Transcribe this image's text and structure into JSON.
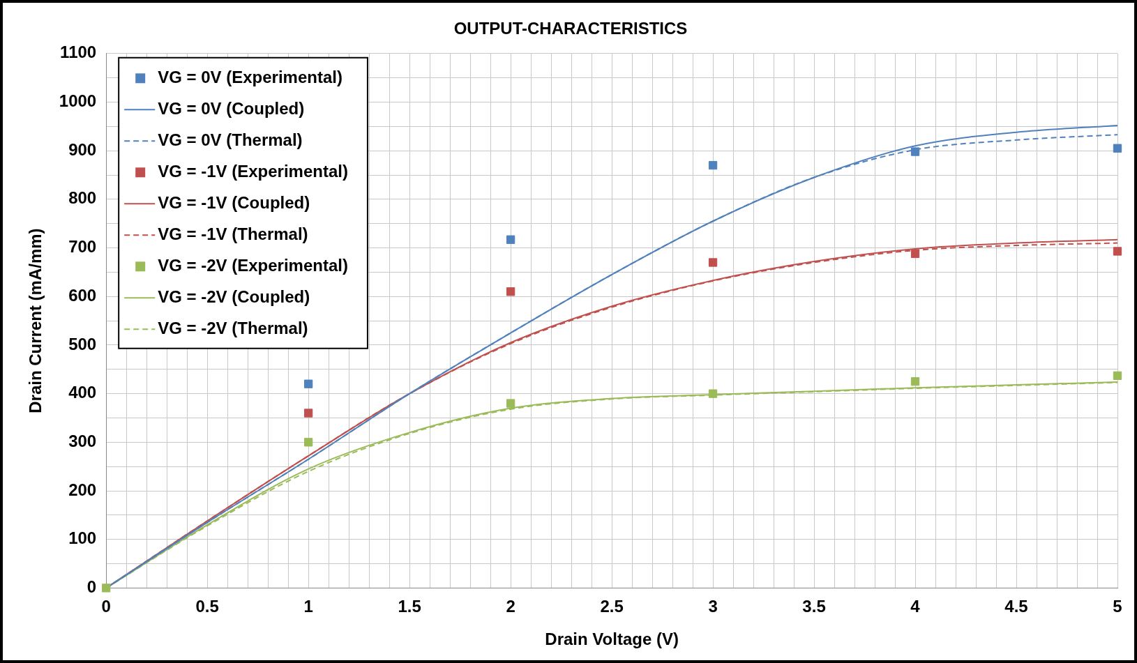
{
  "chart_data": {
    "type": "scatter",
    "title": "OUTPUT-CHARACTERISTICS",
    "xlabel": "Drain Voltage (V)",
    "ylabel": "Drain Current (mA/mm)",
    "xlim": [
      0,
      5
    ],
    "ylim": [
      0,
      1100
    ],
    "xticks": [
      0,
      {
        "value": 0.1,
        "label": null
      },
      {
        "value": 0.2,
        "label": null
      },
      {
        "value": 0.3,
        "label": null
      },
      {
        "value": 0.4,
        "label": null
      },
      0.5,
      {
        "value": 0.6,
        "label": null
      },
      {
        "value": 0.7,
        "label": null
      },
      {
        "value": 0.8,
        "label": null
      },
      {
        "value": 0.9,
        "label": null
      },
      1,
      {
        "value": 1.1,
        "label": null
      },
      {
        "value": 1.2,
        "label": null
      },
      {
        "value": 1.3,
        "label": null
      },
      {
        "value": 1.4,
        "label": null
      },
      1.5,
      {
        "value": 1.6,
        "label": null
      },
      {
        "value": 1.7,
        "label": null
      },
      {
        "value": 1.8,
        "label": null
      },
      {
        "value": 1.9,
        "label": null
      },
      2,
      {
        "value": 2.1,
        "label": null
      },
      {
        "value": 2.2,
        "label": null
      },
      {
        "value": 2.3,
        "label": null
      },
      {
        "value": 2.4,
        "label": null
      },
      2.5,
      {
        "value": 2.6,
        "label": null
      },
      {
        "value": 2.7,
        "label": null
      },
      {
        "value": 2.8,
        "label": null
      },
      {
        "value": 2.9,
        "label": null
      },
      3,
      {
        "value": 3.1,
        "label": null
      },
      {
        "value": 3.2,
        "label": null
      },
      {
        "value": 3.3,
        "label": null
      },
      {
        "value": 3.4,
        "label": null
      },
      3.5,
      {
        "value": 3.6,
        "label": null
      },
      {
        "value": 3.7,
        "label": null
      },
      {
        "value": 3.8,
        "label": null
      },
      {
        "value": 3.9,
        "label": null
      },
      4,
      {
        "value": 4.1,
        "label": null
      },
      {
        "value": 4.2,
        "label": null
      },
      {
        "value": 4.3,
        "label": null
      },
      {
        "value": 4.4,
        "label": null
      },
      4.5,
      {
        "value": 4.6,
        "label": null
      },
      {
        "value": 4.7,
        "label": null
      },
      {
        "value": 4.8,
        "label": null
      },
      {
        "value": 4.9,
        "label": null
      },
      5
    ],
    "yticks": [
      0,
      {
        "value": 50,
        "label": null
      },
      100,
      {
        "value": 150,
        "label": null
      },
      200,
      {
        "value": 250,
        "label": null
      },
      300,
      {
        "value": 350,
        "label": null
      },
      400,
      {
        "value": 450,
        "label": null
      },
      500,
      {
        "value": 550,
        "label": null
      },
      600,
      {
        "value": 650,
        "label": null
      },
      700,
      {
        "value": 750,
        "label": null
      },
      800,
      {
        "value": 850,
        "label": null
      },
      900,
      {
        "value": 950,
        "label": null
      },
      1000,
      {
        "value": 1050,
        "label": null
      },
      1100
    ],
    "grid": true,
    "legend": "top left",
    "series": [
      {
        "name": "VG = 0V (Experimental)",
        "marker": "square",
        "color": "#4f81bd",
        "x": [
          1,
          2,
          3,
          4,
          5
        ],
        "values": [
          420,
          717,
          870,
          898,
          905
        ]
      },
      {
        "name": "VG = 0V (Coupled)",
        "type": "line",
        "marker": "none",
        "line_style": "solid",
        "color": "#4f81bd",
        "x": [
          0,
          0.5,
          1,
          1.5,
          2,
          2.5,
          3,
          3.5,
          4,
          4.5,
          5
        ],
        "values": [
          0,
          135,
          265,
          400,
          525,
          645,
          755,
          845,
          910,
          938,
          952
        ]
      },
      {
        "name": "VG = 0V (Thermal)",
        "type": "line",
        "marker": "none",
        "line_style": "dashed",
        "color": "#4f81bd",
        "x": [
          0,
          0.5,
          1,
          1.5,
          2,
          2.5,
          3,
          3.5,
          4,
          4.5,
          5
        ],
        "values": [
          0,
          135,
          265,
          400,
          525,
          645,
          755,
          845,
          902,
          922,
          933
        ]
      },
      {
        "name": "VG = -1V (Experimental)",
        "marker": "square",
        "color": "#c0504d",
        "x": [
          1,
          2,
          3,
          4,
          5
        ],
        "values": [
          360,
          610,
          670,
          688,
          693
        ]
      },
      {
        "name": "VG = -1V (Coupled)",
        "type": "line",
        "marker": "none",
        "line_style": "solid",
        "color": "#c0504d",
        "x": [
          0,
          0.5,
          1,
          1.5,
          2,
          2.5,
          3,
          3.5,
          4,
          4.5,
          5
        ],
        "values": [
          0,
          138,
          272,
          400,
          505,
          580,
          633,
          672,
          698,
          710,
          717
        ]
      },
      {
        "name": "VG = -1V (Thermal)",
        "type": "line",
        "marker": "none",
        "line_style": "dashed",
        "color": "#c0504d",
        "x": [
          0,
          0.5,
          1,
          1.5,
          2,
          2.5,
          3,
          3.5,
          4,
          4.5,
          5
        ],
        "values": [
          0,
          138,
          272,
          400,
          503,
          578,
          632,
          670,
          695,
          705,
          710
        ]
      },
      {
        "name": "VG = -2V (Experimental)",
        "marker": "square",
        "color": "#9bbb59",
        "x": [
          0,
          1,
          2,
          3,
          4,
          5
        ],
        "values": [
          0,
          300,
          380,
          400,
          425,
          437
        ]
      },
      {
        "name": "VG = -2V (Coupled)",
        "type": "line",
        "marker": "none",
        "line_style": "solid",
        "color": "#9bbb59",
        "x": [
          0,
          0.5,
          1,
          1.5,
          2,
          2.5,
          3,
          3.5,
          4,
          4.5,
          5
        ],
        "values": [
          0,
          130,
          245,
          320,
          370,
          390,
          398,
          405,
          412,
          418,
          424
        ]
      },
      {
        "name": "VG = -2V (Thermal)",
        "type": "line",
        "marker": "none",
        "line_style": "dashed",
        "color": "#9bbb59",
        "x": [
          0,
          0.5,
          1,
          1.5,
          2,
          2.5,
          3,
          3.5,
          4,
          4.5,
          5
        ],
        "values": [
          0,
          128,
          240,
          318,
          368,
          389,
          397,
          404,
          411,
          417,
          423
        ]
      }
    ]
  }
}
